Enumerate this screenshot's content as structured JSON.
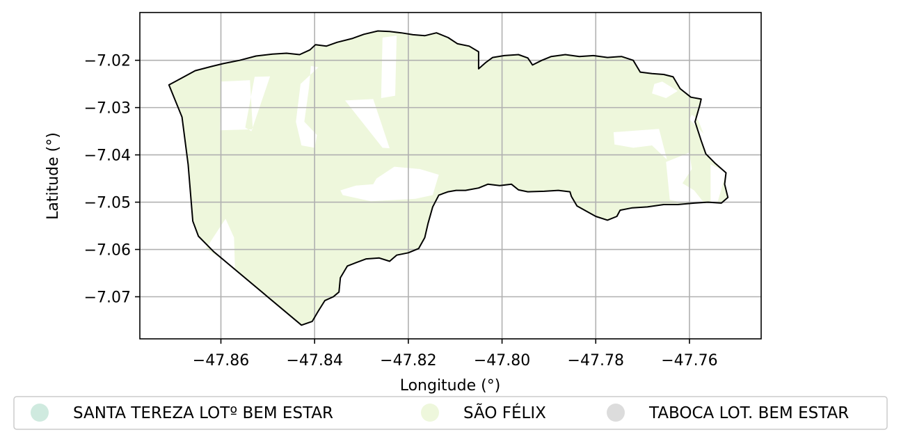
{
  "chart_data": {
    "type": "map",
    "title": "",
    "xlabel": "Longitude (°)",
    "ylabel": "Latitude (°)",
    "xlim": [
      -47.8773,
      -47.7447
    ],
    "ylim": [
      -7.0789,
      -7.0099
    ],
    "xticks": [
      {
        "value": -47.86,
        "label": "−47.86"
      },
      {
        "value": -47.84,
        "label": "−47.84"
      },
      {
        "value": -47.82,
        "label": "−47.82"
      },
      {
        "value": -47.8,
        "label": "−47.80"
      },
      {
        "value": -47.78,
        "label": "−47.78"
      },
      {
        "value": -47.76,
        "label": "−47.76"
      }
    ],
    "yticks": [
      {
        "value": -7.02,
        "label": "−7.02"
      },
      {
        "value": -7.03,
        "label": "−7.03"
      },
      {
        "value": -7.04,
        "label": "−7.04"
      },
      {
        "value": -7.05,
        "label": "−7.05"
      },
      {
        "value": -7.06,
        "label": "−7.06"
      },
      {
        "value": -7.07,
        "label": "−7.07"
      }
    ],
    "grid": true,
    "legend_position": "bottom-center",
    "legend": [
      {
        "name": "SANTA TEREZA LOTº BEM ESTAR",
        "color": "#cfeadf"
      },
      {
        "name": "SÃO FÉLIX",
        "color": "#eef7dc"
      },
      {
        "name": "TABOCA LOT. BEM ESTAR",
        "color": "#dcdcdc"
      }
    ],
    "fill_color": "#eef7dc",
    "boundary": [
      [
        -47.8711,
        -7.0252
      ],
      [
        -47.8688,
        -7.024
      ],
      [
        -47.8655,
        -7.0222
      ],
      [
        -47.862,
        -7.0213
      ],
      [
        -47.8595,
        -7.0207
      ],
      [
        -47.856,
        -7.02
      ],
      [
        -47.8525,
        -7.0191
      ],
      [
        -47.849,
        -7.0187
      ],
      [
        -47.846,
        -7.0185
      ],
      [
        -47.8432,
        -7.0188
      ],
      [
        -47.841,
        -7.0178
      ],
      [
        -47.8398,
        -7.0167
      ],
      [
        -47.8375,
        -7.017
      ],
      [
        -47.8352,
        -7.0162
      ],
      [
        -47.832,
        -7.0154
      ],
      [
        -47.8295,
        -7.0145
      ],
      [
        -47.8265,
        -7.0138
      ],
      [
        -47.824,
        -7.0139
      ],
      [
        -47.8215,
        -7.0142
      ],
      [
        -47.819,
        -7.0146
      ],
      [
        -47.8165,
        -7.0148
      ],
      [
        -47.814,
        -7.0142
      ],
      [
        -47.8115,
        -7.0152
      ],
      [
        -47.8095,
        -7.0165
      ],
      [
        -47.807,
        -7.017
      ],
      [
        -47.805,
        -7.0182
      ],
      [
        -47.805,
        -7.0218
      ],
      [
        -47.8035,
        -7.0205
      ],
      [
        -47.802,
        -7.0194
      ],
      [
        -47.7995,
        -7.019
      ],
      [
        -47.7965,
        -7.0188
      ],
      [
        -47.7945,
        -7.0195
      ],
      [
        -47.7935,
        -7.021
      ],
      [
        -47.7915,
        -7.02
      ],
      [
        -47.7895,
        -7.0192
      ],
      [
        -47.7865,
        -7.0188
      ],
      [
        -47.7835,
        -7.0192
      ],
      [
        -47.7805,
        -7.019
      ],
      [
        -47.7775,
        -7.0194
      ],
      [
        -47.7745,
        -7.0192
      ],
      [
        -47.772,
        -7.02
      ],
      [
        -47.7705,
        -7.0225
      ],
      [
        -47.768,
        -7.0228
      ],
      [
        -47.7655,
        -7.023
      ],
      [
        -47.7635,
        -7.0235
      ],
      [
        -47.762,
        -7.026
      ],
      [
        -47.7597,
        -7.0278
      ],
      [
        -47.7575,
        -7.0282
      ],
      [
        -47.7578,
        -7.0295
      ],
      [
        -47.7588,
        -7.033
      ],
      [
        -47.7575,
        -7.037
      ],
      [
        -47.7565,
        -7.0398
      ],
      [
        -47.7545,
        -7.0418
      ],
      [
        -47.7522,
        -7.0438
      ],
      [
        -47.7525,
        -7.0462
      ],
      [
        -47.7518,
        -7.049
      ],
      [
        -47.7532,
        -7.0502
      ],
      [
        -47.756,
        -7.05
      ],
      [
        -47.759,
        -7.0502
      ],
      [
        -47.7625,
        -7.0505
      ],
      [
        -47.7655,
        -7.0505
      ],
      [
        -47.769,
        -7.051
      ],
      [
        -47.7722,
        -7.0512
      ],
      [
        -47.7748,
        -7.0517
      ],
      [
        -47.7755,
        -7.053
      ],
      [
        -47.7775,
        -7.0538
      ],
      [
        -47.78,
        -7.053
      ],
      [
        -47.7818,
        -7.052
      ],
      [
        -47.784,
        -7.0508
      ],
      [
        -47.7852,
        -7.0488
      ],
      [
        -47.7855,
        -7.0478
      ],
      [
        -47.788,
        -7.0475
      ],
      [
        -47.791,
        -7.0477
      ],
      [
        -47.7945,
        -7.0478
      ],
      [
        -47.7965,
        -7.0474
      ],
      [
        -47.798,
        -7.0462
      ],
      [
        -47.8005,
        -7.0465
      ],
      [
        -47.803,
        -7.0462
      ],
      [
        -47.805,
        -7.047
      ],
      [
        -47.8078,
        -7.0475
      ],
      [
        -47.8098,
        -7.0475
      ],
      [
        -47.8115,
        -7.0478
      ],
      [
        -47.8135,
        -7.0485
      ],
      [
        -47.8148,
        -7.051
      ],
      [
        -47.8158,
        -7.0545
      ],
      [
        -47.8165,
        -7.0575
      ],
      [
        -47.8178,
        -7.0598
      ],
      [
        -47.82,
        -7.0607
      ],
      [
        -47.8225,
        -7.0612
      ],
      [
        -47.824,
        -7.0625
      ],
      [
        -47.8262,
        -7.0618
      ],
      [
        -47.829,
        -7.062
      ],
      [
        -47.8312,
        -7.0628
      ],
      [
        -47.833,
        -7.0635
      ],
      [
        -47.8345,
        -7.066
      ],
      [
        -47.8348,
        -7.069
      ],
      [
        -47.836,
        -7.07
      ],
      [
        -47.8378,
        -7.0708
      ],
      [
        -47.8392,
        -7.073
      ],
      [
        -47.8405,
        -7.0752
      ],
      [
        -47.8428,
        -7.076
      ],
      [
        -47.8615,
        -7.0605
      ],
      [
        -47.8648,
        -7.0572
      ],
      [
        -47.866,
        -7.054
      ],
      [
        -47.867,
        -7.042
      ],
      [
        -47.8683,
        -7.032
      ],
      [
        -47.8711,
        -7.0252
      ]
    ],
    "holes": [
      [
        [
          -47.86,
          -7.0245
        ],
        [
          -47.8538,
          -7.0242
        ],
        [
          -47.8532,
          -7.0346
        ],
        [
          -47.8602,
          -7.0348
        ]
      ],
      [
        [
          -47.8528,
          -7.0235
        ],
        [
          -47.8495,
          -7.0234
        ],
        [
          -47.8535,
          -7.035
        ],
        [
          -47.8548,
          -7.0342
        ]
      ],
      [
        [
          -47.8392,
          -7.0215
        ],
        [
          -47.8408,
          -7.0212
        ],
        [
          -47.8412,
          -7.0258
        ],
        [
          -47.8422,
          -7.033
        ],
        [
          -47.8395,
          -7.0358
        ],
        [
          -47.84,
          -7.0385
        ],
        [
          -47.8428,
          -7.038
        ],
        [
          -47.844,
          -7.033
        ],
        [
          -47.843,
          -7.025
        ]
      ],
      [
        [
          -47.8255,
          -7.0152
        ],
        [
          -47.8225,
          -7.0148
        ],
        [
          -47.8228,
          -7.0275
        ],
        [
          -47.8258,
          -7.028
        ]
      ],
      [
        [
          -47.8335,
          -7.0285
        ],
        [
          -47.8275,
          -7.0282
        ],
        [
          -47.824,
          -7.0386
        ],
        [
          -47.8255,
          -7.0385
        ]
      ],
      [
        [
          -47.823,
          -7.0425
        ],
        [
          -47.8175,
          -7.043
        ],
        [
          -47.8135,
          -7.0442
        ],
        [
          -47.8148,
          -7.0485
        ],
        [
          -47.8185,
          -7.0493
        ],
        [
          -47.828,
          -7.0498
        ],
        [
          -47.834,
          -7.0485
        ],
        [
          -47.8345,
          -7.0475
        ],
        [
          -47.8312,
          -7.0465
        ],
        [
          -47.8275,
          -7.0462
        ],
        [
          -47.8268,
          -7.045
        ]
      ],
      [
        [
          -47.7762,
          -7.0352
        ],
        [
          -47.7665,
          -7.0345
        ],
        [
          -47.7648,
          -7.041
        ],
        [
          -47.768,
          -7.038
        ],
        [
          -47.772,
          -7.0385
        ],
        [
          -47.776,
          -7.0378
        ]
      ],
      [
        [
          -47.7595,
          -7.0315
        ],
        [
          -47.7582,
          -7.0325
        ],
        [
          -47.757,
          -7.0355
        ],
        [
          -47.76,
          -7.0325
        ]
      ],
      [
        [
          -47.7658,
          -7.0245
        ],
        [
          -47.7675,
          -7.025
        ],
        [
          -47.768,
          -7.027
        ],
        [
          -47.765,
          -7.028
        ],
        [
          -47.7625,
          -7.0265
        ]
      ],
      [
        [
          -47.76,
          -7.0395
        ],
        [
          -47.7595,
          -7.043
        ],
        [
          -47.7615,
          -7.046
        ],
        [
          -47.759,
          -7.0475
        ],
        [
          -47.757,
          -7.05
        ],
        [
          -47.7618,
          -7.05
        ],
        [
          -47.7642,
          -7.0495
        ],
        [
          -47.765,
          -7.0415
        ]
      ],
      [
        [
          -47.7555,
          -7.042
        ],
        [
          -47.753,
          -7.0432
        ],
        [
          -47.7522,
          -7.0438
        ],
        [
          -47.754,
          -7.05
        ],
        [
          -47.7555,
          -7.05
        ]
      ],
      [
        [
          -47.8632,
          -7.0598
        ],
        [
          -47.859,
          -7.0535
        ],
        [
          -47.8572,
          -7.0575
        ],
        [
          -47.857,
          -7.064
        ],
        [
          -47.854,
          -7.066
        ]
      ]
    ]
  }
}
